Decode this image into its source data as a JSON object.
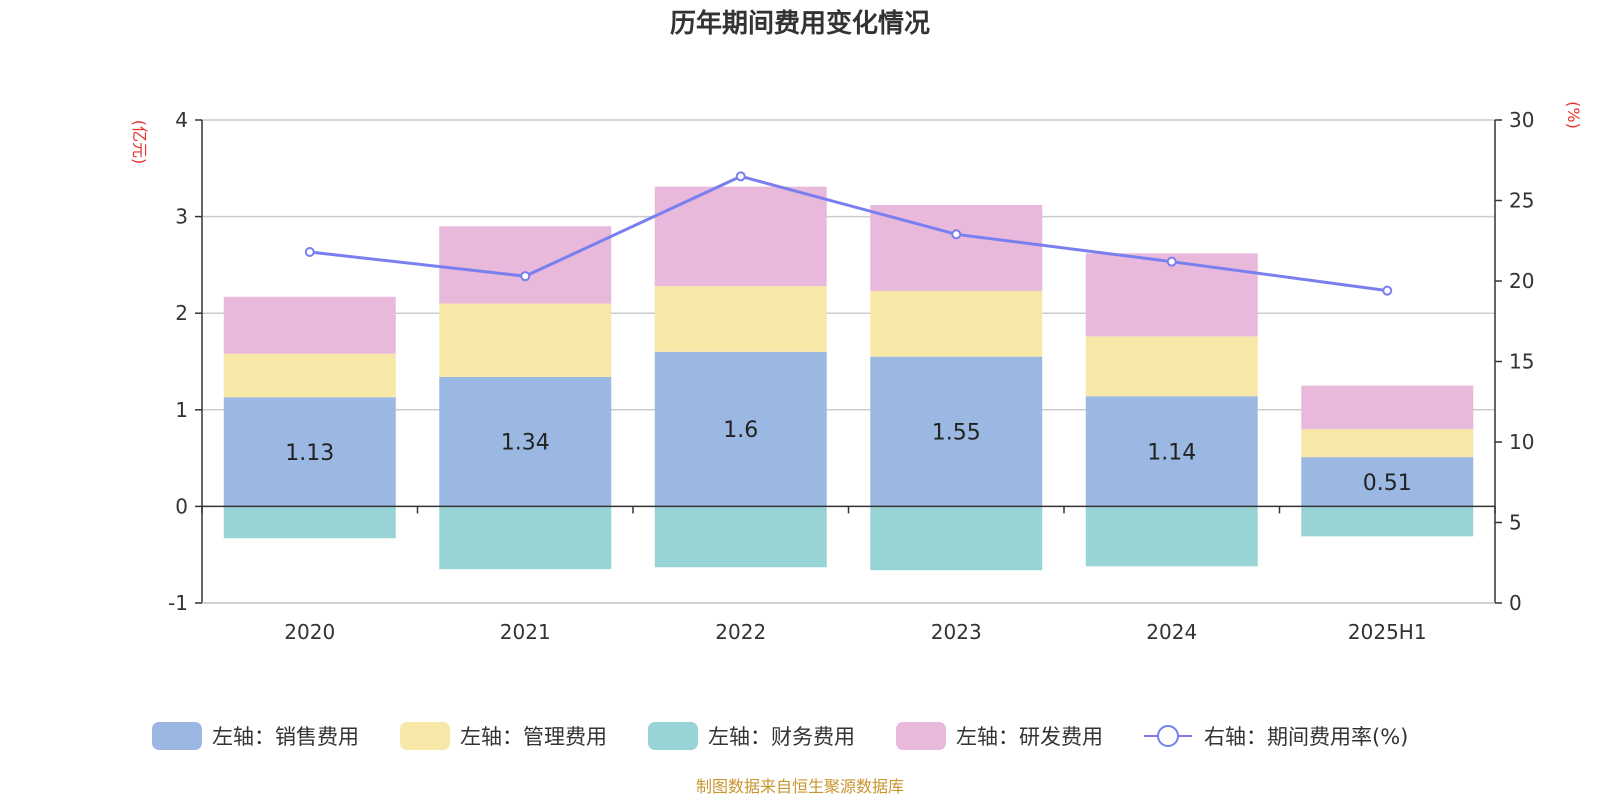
{
  "chart_data": {
    "type": "bar",
    "title": "历年期间费用变化情况",
    "categories": [
      "2020",
      "2021",
      "2022",
      "2023",
      "2024",
      "2025H1"
    ],
    "stacked": true,
    "left_axis": {
      "unit": "(亿元)",
      "ylim": [
        -1,
        4
      ],
      "ticks": [
        -1,
        0,
        1,
        2,
        3,
        4
      ]
    },
    "right_axis": {
      "unit": "(%)",
      "ylim": [
        0,
        30
      ],
      "ticks": [
        0,
        5,
        10,
        15,
        20,
        25,
        30
      ]
    },
    "grid": true,
    "legend_position": "bottom",
    "series": [
      {
        "name": "左轴：销售费用",
        "axis": "left",
        "color": "#9bb8e2",
        "values": [
          1.13,
          1.34,
          1.6,
          1.55,
          1.14,
          0.51
        ],
        "labels": [
          "1.13",
          "1.34",
          "1.6",
          "1.55",
          "1.14",
          "0.51"
        ]
      },
      {
        "name": "左轴：管理费用",
        "axis": "left",
        "color": "#f7e8a8",
        "values": [
          0.45,
          0.76,
          0.68,
          0.68,
          0.62,
          0.29
        ]
      },
      {
        "name": "左轴：财务费用",
        "axis": "left",
        "color": "#98d4d6",
        "values": [
          -0.33,
          -0.65,
          -0.63,
          -0.66,
          -0.62,
          -0.31
        ]
      },
      {
        "name": "左轴：研发费用",
        "axis": "left",
        "color": "#e8b9da",
        "values": [
          0.59,
          0.8,
          1.03,
          0.89,
          0.86,
          0.45
        ]
      },
      {
        "name": "右轴：期间费用率(%)",
        "axis": "right",
        "type": "line",
        "color": "#7a7ff0",
        "values": [
          21.8,
          20.3,
          26.5,
          22.9,
          21.2,
          19.4
        ]
      }
    ],
    "source": "制图数据来自恒生聚源数据库"
  }
}
